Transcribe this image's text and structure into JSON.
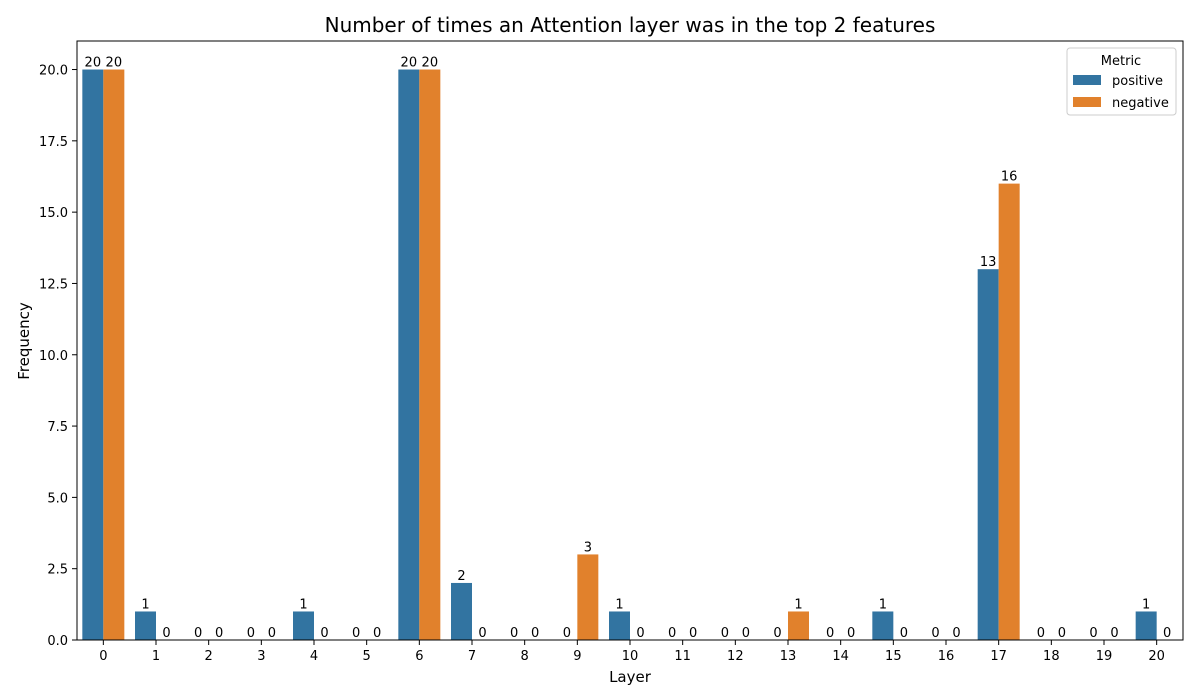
{
  "chart_data": {
    "type": "bar",
    "title": "Number of times an Attention layer was in the top 2 features",
    "xlabel": "Layer",
    "ylabel": "Frequency",
    "categories": [
      "0",
      "1",
      "2",
      "3",
      "4",
      "5",
      "6",
      "7",
      "8",
      "9",
      "10",
      "11",
      "12",
      "13",
      "14",
      "15",
      "16",
      "17",
      "18",
      "19",
      "20"
    ],
    "series": [
      {
        "name": "positive",
        "color": "#3274a1",
        "values": [
          20,
          1,
          0,
          0,
          1,
          0,
          20,
          2,
          0,
          0,
          1,
          0,
          0,
          0,
          0,
          1,
          0,
          13,
          0,
          0,
          1
        ]
      },
      {
        "name": "negative",
        "color": "#e1812c",
        "values": [
          20,
          0,
          0,
          0,
          0,
          0,
          20,
          0,
          0,
          3,
          0,
          0,
          0,
          1,
          0,
          0,
          0,
          16,
          0,
          0,
          0
        ]
      }
    ],
    "ylim": [
      0,
      21
    ],
    "yticks": [
      0.0,
      2.5,
      5.0,
      7.5,
      10.0,
      12.5,
      15.0,
      17.5,
      20.0
    ],
    "ytick_labels": [
      "0.0",
      "2.5",
      "5.0",
      "7.5",
      "10.0",
      "12.5",
      "15.0",
      "17.5",
      "20.0"
    ],
    "grid": false,
    "legend": {
      "title": "Metric",
      "placement": "top-right"
    }
  }
}
